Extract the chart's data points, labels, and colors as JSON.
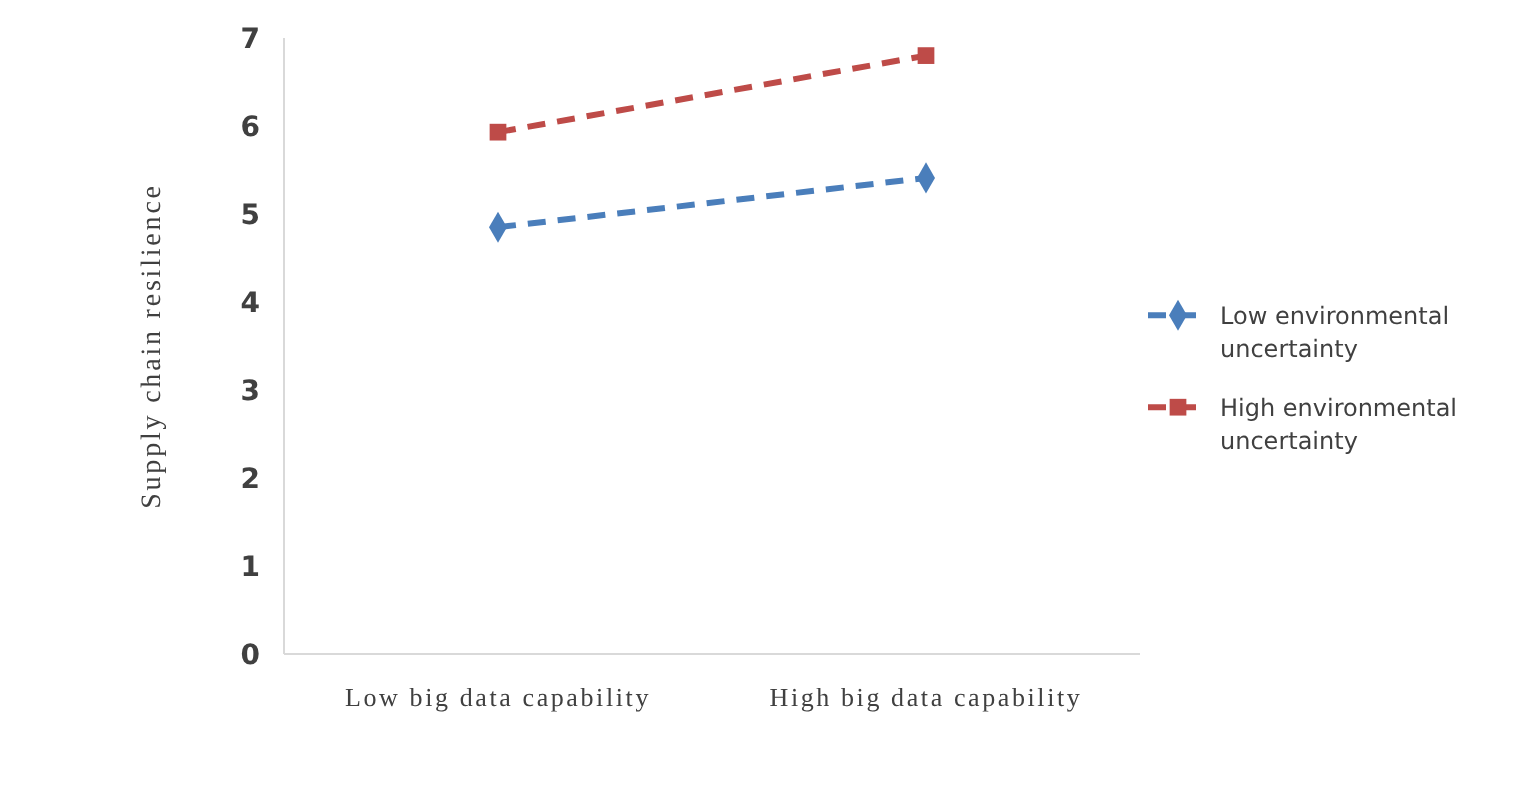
{
  "chart_data": {
    "type": "line",
    "ylabel": "Supply chain resilience",
    "categories": [
      "Low big data capability",
      "High big data capability"
    ],
    "series": [
      {
        "name": "Low environmental uncertainty",
        "color": "#4a7ebb",
        "values": [
          4.85,
          5.41
        ],
        "marker": "diamond"
      },
      {
        "name": "High environmental uncertainty",
        "color": "#be4b48",
        "values": [
          5.93,
          6.8
        ],
        "marker": "square"
      }
    ],
    "ylim": [
      0,
      7
    ],
    "yticks": [
      0,
      1,
      2,
      3,
      4,
      5,
      6,
      7
    ],
    "grid": false,
    "legend": "right",
    "line_style": "dashed"
  }
}
